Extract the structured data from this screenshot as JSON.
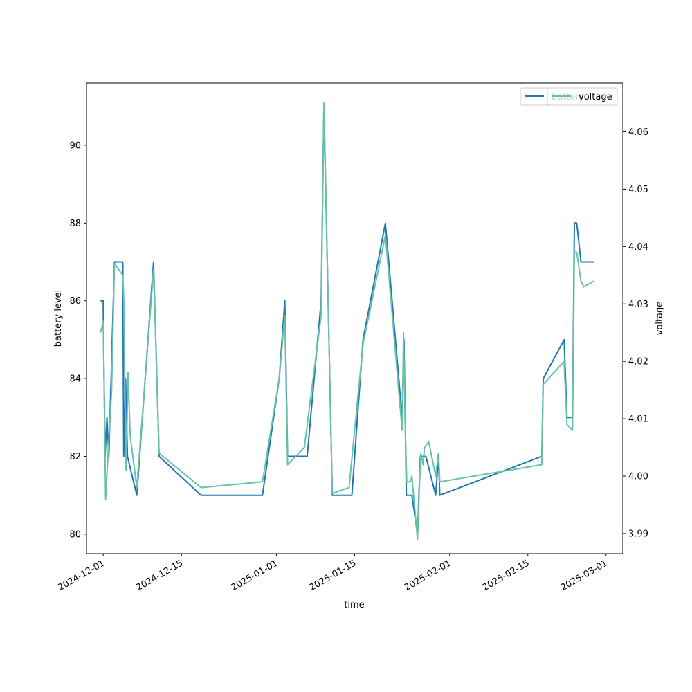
{
  "chart_data": {
    "type": "line",
    "xlabel": "time",
    "ylabel_left": "battery level",
    "ylabel_right": "voltage",
    "x_axis_type": "date",
    "xlim": [
      "2024-11-28",
      "2025-03-04"
    ],
    "x_ticks": [
      "2024-12-01",
      "2024-12-15",
      "2025-01-01",
      "2025-01-15",
      "2025-02-01",
      "2025-02-15",
      "2025-03-01"
    ],
    "ylim_left": [
      79.5,
      91.6
    ],
    "y_ticks_left": [
      80,
      82,
      84,
      86,
      88,
      90
    ],
    "ylim_right": [
      3.9865,
      4.0685
    ],
    "y_ticks_right": [
      3.99,
      4.0,
      4.01,
      4.02,
      4.03,
      4.04,
      4.05,
      4.06
    ],
    "grid": false,
    "legend": {
      "left_entries": [
        "battery"
      ],
      "right_entries": [
        "voltage"
      ],
      "placement": "top-right"
    },
    "colors": {
      "battery": "#1f77b4",
      "voltage": "#66c2a5"
    },
    "series": [
      {
        "name": "battery",
        "axis": "left",
        "points": [
          [
            "2024-11-30 12:00",
            86
          ],
          [
            "2024-12-01 00:00",
            86
          ],
          [
            "2024-12-01 00:30",
            85.3
          ],
          [
            "2024-12-01 08:00",
            82
          ],
          [
            "2024-12-01 16:00",
            83
          ],
          [
            "2024-12-02 00:00",
            82
          ],
          [
            "2024-12-03 00:00",
            87
          ],
          [
            "2024-12-04 12:00",
            87
          ],
          [
            "2024-12-04 16:00",
            82
          ],
          [
            "2024-12-05 00:00",
            84
          ],
          [
            "2024-12-05 08:00",
            82
          ],
          [
            "2024-12-07 00:00",
            81
          ],
          [
            "2024-12-10 00:00",
            87
          ],
          [
            "2024-12-11 00:00",
            82
          ],
          [
            "2024-12-18 12:00",
            81
          ],
          [
            "2024-12-29 12:00",
            81
          ],
          [
            "2025-01-01 12:00",
            84
          ],
          [
            "2025-01-02 12:00",
            86
          ],
          [
            "2025-01-03 00:00",
            82
          ],
          [
            "2025-01-06 12:00",
            82
          ],
          [
            "2025-01-09 00:00",
            86
          ],
          [
            "2025-01-09 12:00",
            91
          ],
          [
            "2025-01-11 00:00",
            81
          ],
          [
            "2025-01-14 12:00",
            81
          ],
          [
            "2025-01-16 12:00",
            85
          ],
          [
            "2025-01-20 12:00",
            88
          ],
          [
            "2025-01-23 12:00",
            83
          ],
          [
            "2025-01-23 20:00",
            85
          ],
          [
            "2025-01-24 06:00",
            81
          ],
          [
            "2025-01-25 06:00",
            81
          ],
          [
            "2025-01-26 06:00",
            80
          ],
          [
            "2025-01-26 18:00",
            82
          ],
          [
            "2025-01-27 06:00",
            82
          ],
          [
            "2025-01-27 18:00",
            82
          ],
          [
            "2025-01-29 12:00",
            81
          ],
          [
            "2025-01-30 00:00",
            82
          ],
          [
            "2025-01-30 06:00",
            81
          ],
          [
            "2025-02-17 12:00",
            82
          ],
          [
            "2025-02-17 18:00",
            84
          ],
          [
            "2025-02-21 12:00",
            85
          ],
          [
            "2025-02-22 00:00",
            83
          ],
          [
            "2025-02-23 00:00",
            83
          ],
          [
            "2025-02-23 08:00",
            88
          ],
          [
            "2025-02-23 18:00",
            88
          ],
          [
            "2025-02-24 12:00",
            87
          ],
          [
            "2025-02-26 20:00",
            87
          ]
        ]
      },
      {
        "name": "voltage",
        "axis": "right",
        "points": [
          [
            "2024-11-30 12:00",
            4.025
          ],
          [
            "2024-12-01 00:00",
            4.027
          ],
          [
            "2024-12-01 10:00",
            3.996
          ],
          [
            "2024-12-02 12:00",
            4.015
          ],
          [
            "2024-12-03 00:00",
            4.037
          ],
          [
            "2024-12-04 12:00",
            4.035
          ],
          [
            "2024-12-04 16:00",
            4.031
          ],
          [
            "2024-12-05 02:00",
            4.001
          ],
          [
            "2024-12-05 10:00",
            4.018
          ],
          [
            "2024-12-05 20:00",
            4.007
          ],
          [
            "2024-12-07 00:00",
            3.998
          ],
          [
            "2024-12-10 00:00",
            4.036
          ],
          [
            "2024-12-11 00:00",
            4.004
          ],
          [
            "2024-12-18 12:00",
            3.998
          ],
          [
            "2024-12-29 12:00",
            3.999
          ],
          [
            "2025-01-01 12:00",
            4.017
          ],
          [
            "2025-01-02 12:00",
            4.028
          ],
          [
            "2025-01-03 00:00",
            4.002
          ],
          [
            "2025-01-06 00:00",
            4.005
          ],
          [
            "2025-01-09 00:00",
            4.028
          ],
          [
            "2025-01-09 12:00",
            4.065
          ],
          [
            "2025-01-11 00:00",
            3.997
          ],
          [
            "2025-01-14 00:00",
            3.998
          ],
          [
            "2025-01-16 12:00",
            4.023
          ],
          [
            "2025-01-20 12:00",
            4.042
          ],
          [
            "2025-01-23 12:00",
            4.008
          ],
          [
            "2025-01-23 18:00",
            4.025
          ],
          [
            "2025-01-24 00:00",
            4.01
          ],
          [
            "2025-01-24 08:00",
            3.999
          ],
          [
            "2025-01-25 00:00",
            3.999
          ],
          [
            "2025-01-25 06:00",
            4.0
          ],
          [
            "2025-01-26 06:00",
            3.989
          ],
          [
            "2025-01-26 20:00",
            4.004
          ],
          [
            "2025-01-27 06:00",
            4.002
          ],
          [
            "2025-01-27 12:00",
            4.005
          ],
          [
            "2025-01-28 06:00",
            4.006
          ],
          [
            "2025-01-29 12:00",
            4.0
          ],
          [
            "2025-01-30 00:00",
            4.004
          ],
          [
            "2025-01-30 06:00",
            3.999
          ],
          [
            "2025-02-17 12:00",
            4.002
          ],
          [
            "2025-02-17 18:00",
            4.016
          ],
          [
            "2025-02-21 12:00",
            4.02
          ],
          [
            "2025-02-22 00:00",
            4.009
          ],
          [
            "2025-02-23 00:00",
            4.008
          ],
          [
            "2025-02-23 08:00",
            4.039
          ],
          [
            "2025-02-23 18:00",
            4.039
          ],
          [
            "2025-02-24 12:00",
            4.034
          ],
          [
            "2025-02-25 00:00",
            4.033
          ],
          [
            "2025-02-26 20:00",
            4.034
          ]
        ]
      }
    ]
  }
}
